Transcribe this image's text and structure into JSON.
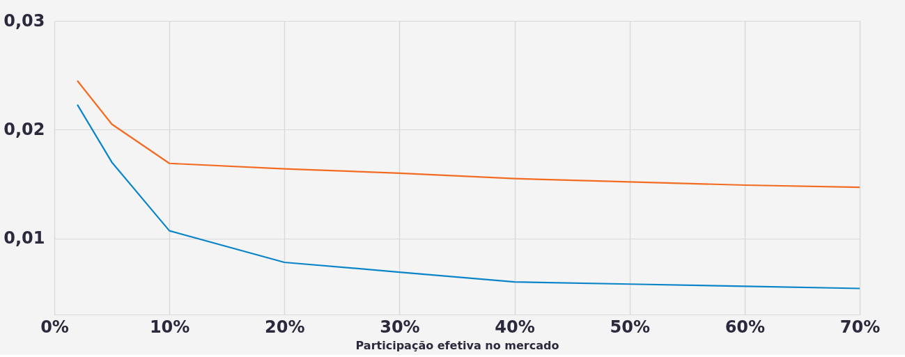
{
  "chart_data": {
    "type": "line",
    "xlabel": "Participação efetiva no mercado",
    "x": [
      2,
      5,
      10,
      20,
      30,
      40,
      50,
      60,
      70
    ],
    "series": [
      {
        "color": "#f26b21",
        "values": [
          0.0245,
          0.0205,
          0.0169,
          0.0164,
          0.016,
          0.0155,
          0.0152,
          0.0149,
          0.0147
        ]
      },
      {
        "color": "#0a84c8",
        "values": [
          0.0223,
          0.017,
          0.0107,
          0.0078,
          0.0069,
          0.006,
          0.0058,
          0.0056,
          0.0054
        ]
      }
    ],
    "xlim": [
      0,
      70
    ],
    "xticks": [
      {
        "value": 0,
        "label": "0%"
      },
      {
        "value": 10,
        "label": "10%"
      },
      {
        "value": 20,
        "label": "20%"
      },
      {
        "value": 30,
        "label": "30%"
      },
      {
        "value": 40,
        "label": "40%"
      },
      {
        "value": 50,
        "label": "50%"
      },
      {
        "value": 60,
        "label": "60%"
      },
      {
        "value": 70,
        "label": "70%"
      }
    ],
    "ylim": [
      0.003,
      0.03
    ],
    "yticks": [
      {
        "value": 0.01,
        "label": "0,01"
      },
      {
        "value": 0.02,
        "label": "0,02"
      },
      {
        "value": 0.03,
        "label": "0,03"
      }
    ],
    "grid": true,
    "legend": false,
    "marker": "none",
    "line_style": "solid"
  }
}
